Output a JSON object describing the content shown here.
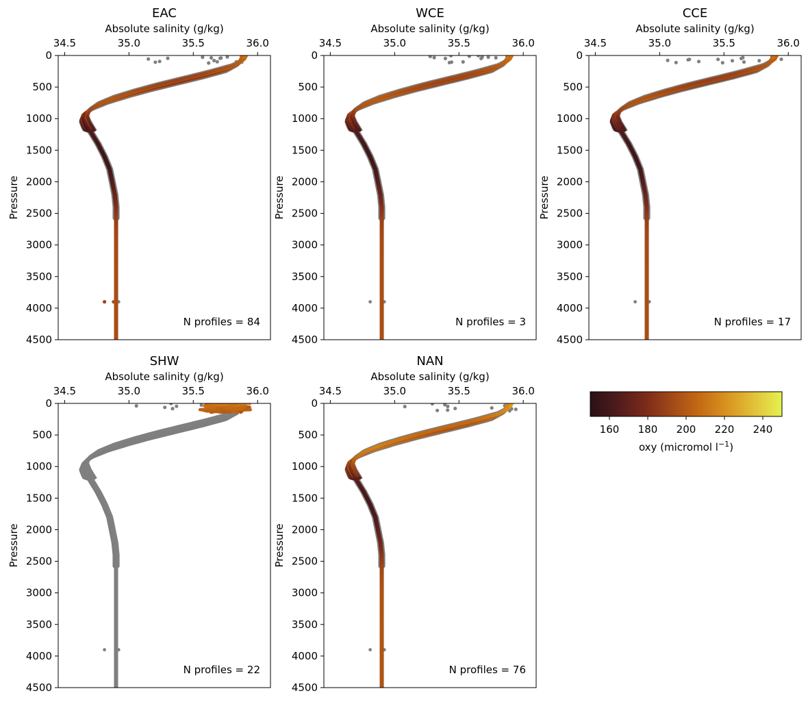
{
  "colors": {
    "background_profile": "#808080",
    "colormap": [
      "#2a1116",
      "#4f1c1c",
      "#7a2a1a",
      "#a34a17",
      "#c56a14",
      "#d99420",
      "#e2c23a",
      "#e4f24f"
    ]
  },
  "chart_data": [
    {
      "type": "scatter",
      "title": "EAC",
      "xlabel": "Absolute salinity (g/kg)",
      "ylabel": "Pressure",
      "xlim": [
        34.45,
        36.1
      ],
      "ylim": [
        4500,
        0
      ],
      "xticks": [
        34.5,
        35.0,
        35.5,
        36.0
      ],
      "xtick_labels": [
        "34.5",
        "35.0",
        "35.5",
        "36.0"
      ],
      "yticks": [
        0,
        500,
        1000,
        1500,
        2000,
        2500,
        3000,
        3500,
        4000,
        4500
      ],
      "x_axis_position": "top",
      "annotation": "N profiles = 84",
      "colored_depth_range": [
        0,
        4500
      ],
      "grey_profile_depth_range": [
        0,
        4500
      ],
      "series": [
        {
          "label_key": "mean",
          "color": "colormap",
          "pressure": [
            0,
            200,
            400,
            600,
            800,
            900,
            1000,
            1200,
            1500,
            2000,
            2500,
            3000,
            4000,
            4500
          ],
          "salinity": [
            35.88,
            35.72,
            35.32,
            34.95,
            34.71,
            34.65,
            34.64,
            34.68,
            34.77,
            34.86,
            34.9,
            34.9,
            34.9,
            34.9
          ],
          "oxygen": [
            220,
            200,
            195,
            195,
            200,
            195,
            180,
            165,
            160,
            165,
            185,
            192,
            194,
            194
          ]
        }
      ]
    },
    {
      "type": "scatter",
      "title": "WCE",
      "xlabel": "Absolute salinity (g/kg)",
      "ylabel": "Pressure",
      "xlim": [
        34.45,
        36.1
      ],
      "ylim": [
        4500,
        0
      ],
      "xticks": [
        34.5,
        35.0,
        35.5,
        36.0
      ],
      "xtick_labels": [
        "34.5",
        "35.0",
        "35.5",
        "36.0"
      ],
      "yticks": [
        0,
        500,
        1000,
        1500,
        2000,
        2500,
        3000,
        3500,
        4000,
        4500
      ],
      "x_axis_position": "top",
      "annotation": "N profiles = 3",
      "colored_depth_range": [
        0,
        4500
      ],
      "grey_profile_depth_range": [
        0,
        4500
      ]
    },
    {
      "type": "scatter",
      "title": "CCE",
      "xlabel": "Absolute salinity (g/kg)",
      "ylabel": "Pressure",
      "xlim": [
        34.45,
        36.1
      ],
      "ylim": [
        4500,
        0
      ],
      "xticks": [
        34.5,
        35.0,
        35.5,
        36.0
      ],
      "xtick_labels": [
        "34.5",
        "35.0",
        "35.5",
        "36.0"
      ],
      "yticks": [
        0,
        500,
        1000,
        1500,
        2000,
        2500,
        3000,
        3500,
        4000,
        4500
      ],
      "x_axis_position": "top",
      "annotation": "N profiles = 17",
      "colored_depth_range": [
        0,
        4500
      ],
      "grey_profile_depth_range": [
        0,
        4500
      ]
    },
    {
      "type": "scatter",
      "title": "SHW",
      "xlabel": "Absolute salinity (g/kg)",
      "ylabel": "Pressure",
      "xlim": [
        34.45,
        36.1
      ],
      "ylim": [
        4500,
        0
      ],
      "xticks": [
        34.5,
        35.0,
        35.5,
        36.0
      ],
      "xtick_labels": [
        "34.5",
        "35.0",
        "35.5",
        "36.0"
      ],
      "yticks": [
        0,
        500,
        1000,
        1500,
        2000,
        2500,
        3000,
        3500,
        4000,
        4500
      ],
      "x_axis_position": "top",
      "annotation": "N profiles = 22",
      "colored_depth_range": [
        0,
        150
      ],
      "grey_profile_depth_range": [
        0,
        4500
      ]
    },
    {
      "type": "scatter",
      "title": "NAN",
      "xlabel": "Absolute salinity (g/kg)",
      "ylabel": "Pressure",
      "xlim": [
        34.45,
        36.1
      ],
      "ylim": [
        4500,
        0
      ],
      "xticks": [
        34.5,
        35.0,
        35.5,
        36.0
      ],
      "xtick_labels": [
        "34.5",
        "35.0",
        "35.5",
        "36.0"
      ],
      "yticks": [
        0,
        500,
        1000,
        1500,
        2000,
        2500,
        3000,
        3500,
        4000,
        4500
      ],
      "x_axis_position": "top",
      "annotation": "N profiles = 76",
      "colored_depth_range": [
        0,
        4500
      ],
      "grey_profile_depth_range": [
        0,
        4500
      ]
    }
  ],
  "colorbar": {
    "label_main": "oxy (micromol l",
    "label_exp": "−1",
    "label_close": ")",
    "range": [
      150,
      250
    ],
    "ticks": [
      160,
      180,
      200,
      220,
      240
    ]
  },
  "profile_model": {
    "pressure": [
      0,
      100,
      200,
      300,
      400,
      500,
      600,
      700,
      800,
      900,
      1000,
      1100,
      1200,
      1400,
      1600,
      1800,
      2000,
      2200,
      2400,
      2600,
      2800,
      3000,
      3500,
      4000,
      4500
    ],
    "salinity": [
      35.9,
      35.87,
      35.78,
      35.6,
      35.4,
      35.2,
      35.02,
      34.86,
      34.74,
      34.67,
      34.65,
      34.67,
      34.7,
      34.76,
      34.81,
      34.85,
      34.87,
      34.89,
      34.9,
      34.9,
      34.9,
      34.9,
      34.9,
      34.9,
      34.9
    ],
    "oxygen": [
      215,
      205,
      198,
      192,
      190,
      192,
      196,
      200,
      198,
      192,
      180,
      172,
      165,
      160,
      158,
      160,
      165,
      172,
      180,
      188,
      192,
      194,
      195,
      195,
      195
    ]
  }
}
